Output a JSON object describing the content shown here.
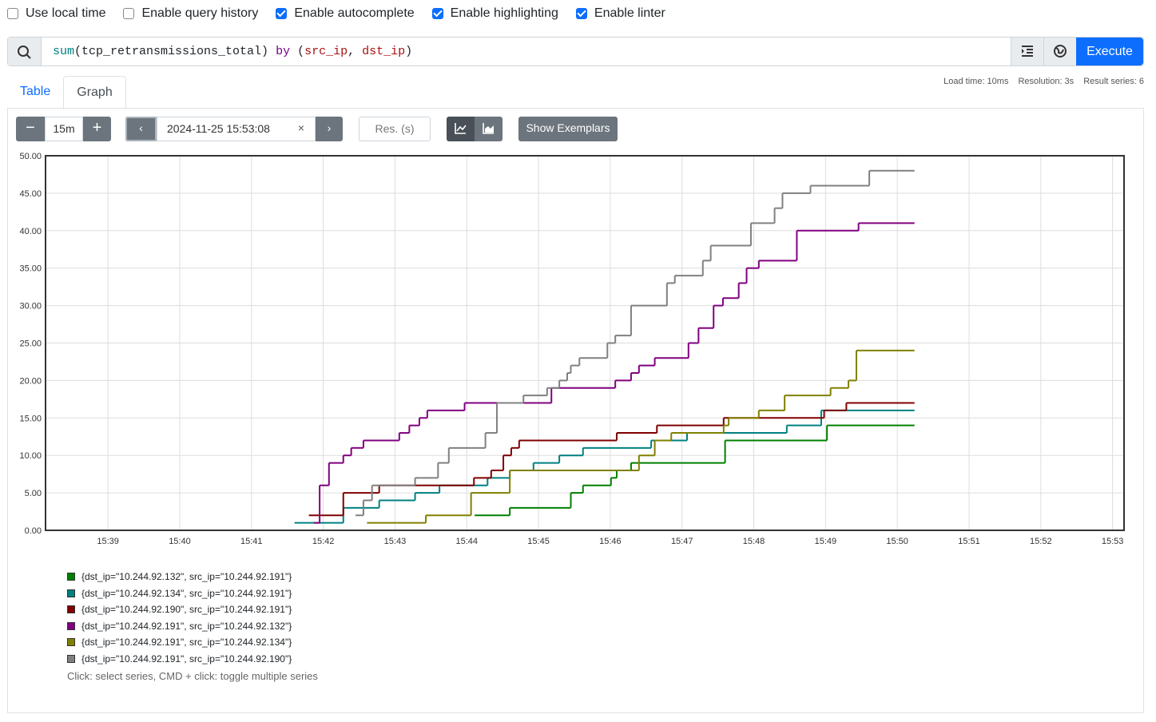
{
  "options": [
    {
      "label": "Use local time",
      "checked": false
    },
    {
      "label": "Enable query history",
      "checked": false
    },
    {
      "label": "Enable autocomplete",
      "checked": true
    },
    {
      "label": "Enable highlighting",
      "checked": true
    },
    {
      "label": "Enable linter",
      "checked": true
    }
  ],
  "query": {
    "tokens": [
      "sum",
      "(tcp_retransmissions_total) ",
      "by",
      " (",
      "src_ip",
      ", ",
      "dst_ip",
      ")"
    ]
  },
  "execute": "Execute",
  "tabs": [
    "Table",
    "Graph"
  ],
  "stats": [
    "Load time: 10ms",
    "Resolution: 3s",
    "Result series: 6"
  ],
  "controls": {
    "range": "15m",
    "end_time": "2024-11-25 15:53:08",
    "resolution_placeholder": "Res. (s)",
    "exemplars": "Show Exemplars"
  },
  "chart_data": {
    "type": "step-line",
    "xlim": [
      938.13,
      953.16
    ],
    "ylim": [
      0,
      50
    ],
    "xticks": [
      {
        "value": 939,
        "label": "15:39"
      },
      {
        "value": 940,
        "label": "15:40"
      },
      {
        "value": 941,
        "label": "15:41"
      },
      {
        "value": 942,
        "label": "15:42"
      },
      {
        "value": 943,
        "label": "15:43"
      },
      {
        "value": 944,
        "label": "15:44"
      },
      {
        "value": 945,
        "label": "15:45"
      },
      {
        "value": 946,
        "label": "15:46"
      },
      {
        "value": 947,
        "label": "15:47"
      },
      {
        "value": 948,
        "label": "15:48"
      },
      {
        "value": 949,
        "label": "15:49"
      },
      {
        "value": 950,
        "label": "15:50"
      },
      {
        "value": 951,
        "label": "15:51"
      },
      {
        "value": 952,
        "label": "15:52"
      },
      {
        "value": 953,
        "label": "15:53"
      }
    ],
    "yticks": [
      {
        "value": 0,
        "label": "0.00"
      },
      {
        "value": 5,
        "label": "5.00"
      },
      {
        "value": 10,
        "label": "10.00"
      },
      {
        "value": 15,
        "label": "15.00"
      },
      {
        "value": 20,
        "label": "20.00"
      },
      {
        "value": 25,
        "label": "25.00"
      },
      {
        "value": 30,
        "label": "30.00"
      },
      {
        "value": 35,
        "label": "35.00"
      },
      {
        "value": 40,
        "label": "40.00"
      },
      {
        "value": 45,
        "label": "45.00"
      },
      {
        "value": 50,
        "label": "50.00"
      }
    ],
    "grid": true,
    "series": [
      {
        "name": "{dst_ip=\"10.244.92.132\", src_ip=\"10.244.92.191\"}",
        "color": "#008000",
        "x": [
          944.11,
          944.6,
          945.45,
          945.62,
          946.01,
          946.09,
          946.29,
          947.6,
          949.02,
          950.24
        ],
        "values": [
          2,
          3,
          5,
          6,
          7,
          8,
          9,
          12,
          14,
          14
        ]
      },
      {
        "name": "{dst_ip=\"10.244.92.134\", src_ip=\"10.244.92.191\"}",
        "color": "#008080",
        "x": [
          941.6,
          942.28,
          942.78,
          943.28,
          943.62,
          944.29,
          944.6,
          944.93,
          945.29,
          945.62,
          946.57,
          947.07,
          948.46,
          948.94,
          950.24
        ],
        "values": [
          1,
          3,
          4,
          5,
          6,
          7,
          8,
          9,
          10,
          11,
          12,
          13,
          14,
          16,
          16
        ]
      },
      {
        "name": "{dst_ip=\"10.244.92.190\", src_ip=\"10.244.92.191\"}",
        "color": "#800000",
        "x": [
          941.8,
          942.28,
          942.78,
          944.1,
          944.34,
          944.51,
          944.62,
          944.73,
          946.09,
          946.65,
          947.58,
          948.98,
          949.29,
          950.24
        ],
        "values": [
          2,
          5,
          6,
          7,
          8,
          10,
          11,
          12,
          13,
          14,
          15,
          16,
          17,
          17
        ]
      },
      {
        "name": "{dst_ip=\"10.244.92.191\", src_ip=\"10.244.92.132\"}",
        "color": "#800080",
        "x": [
          941.87,
          941.95,
          942.08,
          942.28,
          942.39,
          942.56,
          943.06,
          943.2,
          943.34,
          943.45,
          943.97,
          945.18,
          946.07,
          946.29,
          946.4,
          946.62,
          947.09,
          947.23,
          947.44,
          947.57,
          947.79,
          947.9,
          948.07,
          948.6,
          949.46,
          950.24
        ],
        "values": [
          1,
          6,
          9,
          10,
          11,
          12,
          13,
          14,
          15,
          16,
          17,
          19,
          20,
          21,
          22,
          23,
          25,
          27,
          30,
          31,
          33,
          35,
          36,
          40,
          41,
          41
        ]
      },
      {
        "name": "{dst_ip=\"10.244.92.191\", src_ip=\"10.244.92.134\"}",
        "color": "#808000",
        "x": [
          942.61,
          943.43,
          944.06,
          944.6,
          946.4,
          946.62,
          946.85,
          947.58,
          947.65,
          948.07,
          948.43,
          949.07,
          949.32,
          949.43,
          950.24
        ],
        "values": [
          1,
          2,
          5,
          8,
          10,
          12,
          13,
          14,
          15,
          16,
          18,
          19,
          20,
          24,
          24
        ]
      },
      {
        "name": "{dst_ip=\"10.244.92.191\", src_ip=\"10.244.92.190\"}",
        "color": "#808080",
        "x": [
          942.45,
          942.56,
          942.68,
          943.28,
          943.6,
          943.75,
          944.26,
          944.42,
          944.79,
          945.12,
          945.29,
          945.4,
          945.45,
          945.57,
          945.96,
          946.07,
          946.29,
          946.79,
          946.9,
          947.29,
          947.4,
          947.96,
          948.29,
          948.4,
          948.79,
          949.61,
          950.24
        ],
        "values": [
          2,
          4,
          6,
          7,
          9,
          11,
          13,
          17,
          18,
          19,
          20,
          21,
          22,
          23,
          25,
          26,
          30,
          33,
          34,
          36,
          38,
          41,
          43,
          45,
          46,
          48,
          48
        ]
      }
    ]
  },
  "hint": "Click: select series, CMD + click: toggle multiple series"
}
